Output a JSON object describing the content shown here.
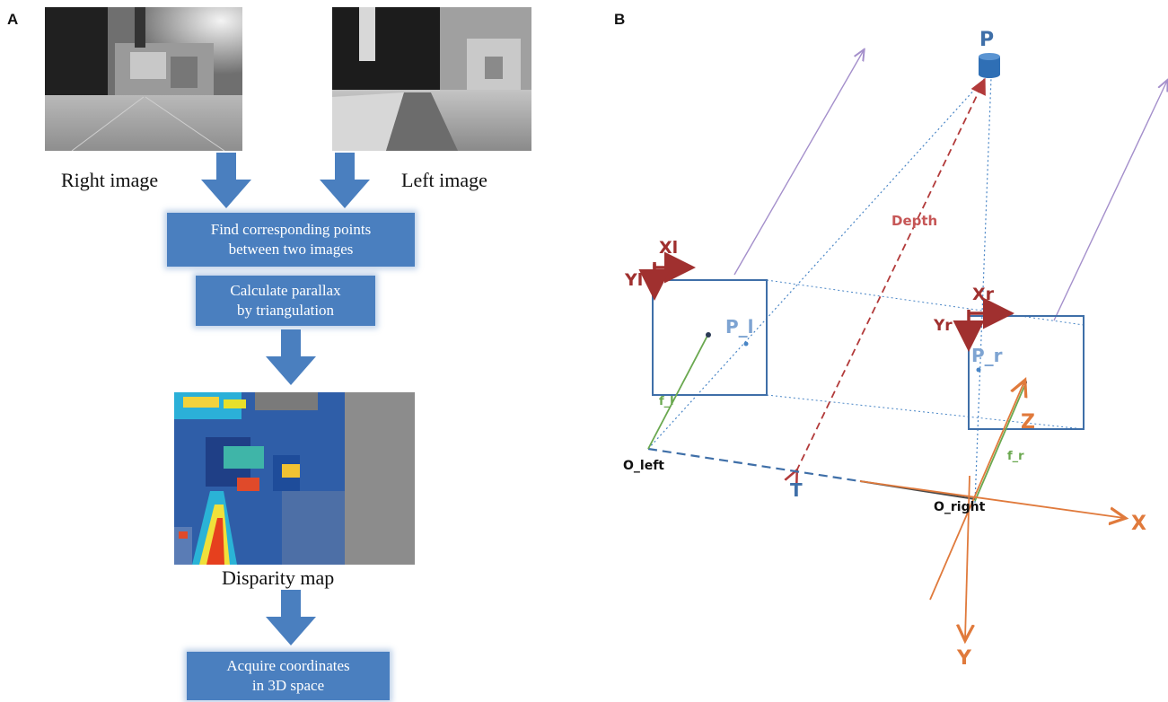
{
  "panels": {
    "a": "A",
    "b": "B"
  },
  "left_panel": {
    "right_image_label": "Right image",
    "left_image_label": "Left image",
    "steps": [
      {
        "line1": "Find corresponding points",
        "line2": "between two images"
      },
      {
        "line1": "Calculate parallax",
        "line2": "by triangulation"
      },
      {
        "line1": "Acquire coordinates",
        "line2": "in 3D space"
      }
    ],
    "disparity_label": "Disparity map"
  },
  "right_panel": {
    "point_label": "P",
    "depth_label": "Depth",
    "xl_label": "Xl",
    "yl_label": "Yl",
    "xr_label": "Xr",
    "yr_label": "Yr",
    "pl_label": "P_l",
    "pr_label": "P_r",
    "fl_label": "f_l",
    "fr_label": "f_r",
    "o_left_label": "O_left",
    "o_right_label": "O_right",
    "t_label": "T",
    "x_axis_label": "X",
    "y_axis_label": "Y",
    "z_axis_label": "Z"
  },
  "colors": {
    "flow_blue": "#4a7fbf",
    "frame_blue": "#3f6fa8",
    "depth_red": "#b23a3a",
    "axis_orange": "#e07a3c",
    "focal_green": "#6aa84f",
    "ray_purple": "#a48fcb"
  }
}
